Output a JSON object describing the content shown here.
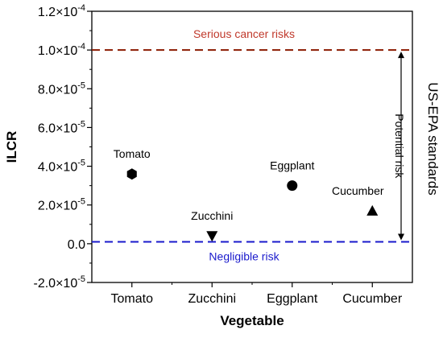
{
  "chart_data": {
    "type": "scatter",
    "xlabel": "Vegetable",
    "ylabel": "ILCR",
    "categories": [
      "Tomato",
      "Zucchini",
      "Eggplant",
      "Cucumber"
    ],
    "ylim": [
      -2e-05,
      0.00012
    ],
    "y_ticks": [
      -2e-05,
      0,
      2e-05,
      4e-05,
      6e-05,
      8e-05,
      0.0001,
      0.00012
    ],
    "y_tick_labels": [
      {
        "m": "-2.0×10",
        "e": "-5"
      },
      {
        "m": "0.0",
        "e": ""
      },
      {
        "m": "2.0×10",
        "e": "-5"
      },
      {
        "m": "4.0×10",
        "e": "-5"
      },
      {
        "m": "6.0×10",
        "e": "-5"
      },
      {
        "m": "8.0×10",
        "e": "-5"
      },
      {
        "m": "1.0×10",
        "e": "-4"
      },
      {
        "m": "1.2×10",
        "e": "-4"
      }
    ],
    "points": [
      {
        "category": "Tomato",
        "value": 3.6e-05,
        "marker": "hexagon",
        "label": "Tomato"
      },
      {
        "category": "Zucchini",
        "value": 4e-06,
        "marker": "triangle-down",
        "label": "Zucchini"
      },
      {
        "category": "Eggplant",
        "value": 3e-05,
        "marker": "circle",
        "label": "Eggplant"
      },
      {
        "category": "Cucumber",
        "value": 1.7e-05,
        "marker": "triangle-up",
        "label": "Cucumber"
      }
    ],
    "reference_lines": [
      {
        "value": 0.0001,
        "label": "Serious cancer risks",
        "color": "#8b1a00",
        "label_color": "#c0392b"
      },
      {
        "value": 1e-06,
        "label": "Negligible risk",
        "color": "#1a1acc",
        "label_color": "#1a1acc"
      }
    ],
    "potential_risk_label": "Potential risk",
    "right_label": "US-EPA standards"
  }
}
